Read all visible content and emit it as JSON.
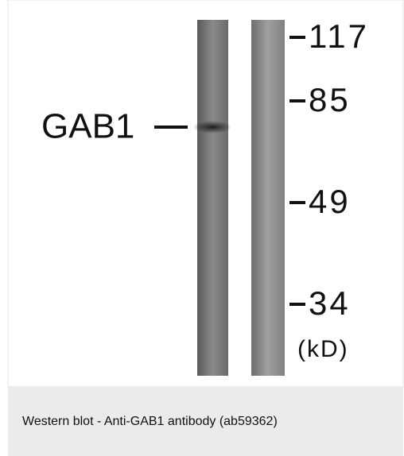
{
  "image": {
    "band_label": "GAB1",
    "markers": [
      "117",
      "85",
      "49",
      "34"
    ],
    "unit": "(kD)"
  },
  "caption": "Western blot - Anti-GAB1 antibody (ab59362)"
}
